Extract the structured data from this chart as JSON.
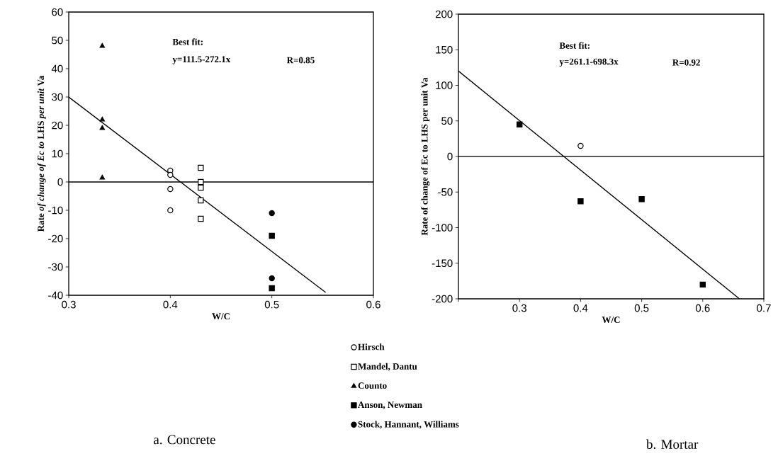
{
  "chart_data": [
    {
      "type": "scatter",
      "title": "a.  Concrete",
      "xlabel": "W/C",
      "ylabel": "Rate *of change of Ec to* LHS *per unit* Va",
      "annotations": [
        "Best fit:",
        "y=111.5-272.1x",
        "R=0.85"
      ],
      "xlim": [
        0.3,
        0.6
      ],
      "xticks": [
        0.3,
        0.4,
        0.5,
        0.6
      ],
      "ylim": [
        -40,
        60
      ],
      "yticks": [
        -40,
        -30,
        -20,
        -10,
        0,
        10,
        20,
        30,
        40,
        50,
        60
      ],
      "legend": "bottom",
      "ref_lines": [
        {
          "axis": "y",
          "value": 0
        }
      ],
      "series": [
        {
          "name": "Hirsch",
          "marker": "circle",
          "color": "#ffffff",
          "x": [
            0.4,
            0.4,
            0.4,
            0.4
          ],
          "values": [
            4,
            2.5,
            -2.5,
            -10
          ]
        },
        {
          "name": "Mandel, Dantu",
          "marker": "square",
          "color": "#ffffff",
          "x": [
            0.43,
            0.43,
            0.43,
            0.43,
            0.43
          ],
          "values": [
            5,
            0,
            -2,
            -6.5,
            -13
          ]
        },
        {
          "name": "Counto",
          "marker": "triangle",
          "color": "#000000",
          "x": [
            0.333,
            0.333,
            0.333,
            0.333
          ],
          "values": [
            48,
            22,
            19,
            1.5
          ]
        },
        {
          "name": "Anson, Newman",
          "marker": "square",
          "color": "#000000",
          "x": [
            0.5,
            0.5
          ],
          "values": [
            -19,
            -37.5
          ]
        },
        {
          "name": "Stock, Hannant, Williams",
          "marker": "circle",
          "color": "#000000",
          "x": [
            0.5,
            0.5
          ],
          "values": [
            -11,
            -34
          ]
        },
        {
          "type": "line",
          "marker": "none",
          "color": "#000000",
          "x": [
            0.3,
            0.553
          ],
          "values": [
            30,
            -39
          ]
        }
      ]
    },
    {
      "type": "scatter",
      "title": "b.  Mortar",
      "xlabel": "W/C",
      "ylabel": "Rate of change of Ec to LHS per unit Va",
      "annotations": [
        "Best fit:",
        "y=261.1-698.3x",
        "R=0.92"
      ],
      "xlim": [
        0.2,
        0.7
      ],
      "xticks": [
        {
          "value": 0.2,
          "label": null
        },
        0.3,
        0.4,
        0.5,
        0.6,
        0.7
      ],
      "ylim": [
        -200,
        200
      ],
      "yticks": [
        -200,
        -150,
        -100,
        -50,
        0,
        50,
        100,
        150,
        200
      ],
      "ref_lines": [
        {
          "axis": "y",
          "value": 0
        }
      ],
      "series": [
        {
          "marker": "circle",
          "color": "#ffffff",
          "x": [
            0.4
          ],
          "values": [
            15
          ]
        },
        {
          "marker": "square",
          "color": "#000000",
          "x": [
            0.3,
            0.4,
            0.5,
            0.6
          ],
          "values": [
            45,
            -63,
            -60,
            -180
          ]
        },
        {
          "type": "line",
          "marker": "none",
          "color": "#000000",
          "x": [
            0.2,
            0.66
          ],
          "values": [
            120,
            -200
          ]
        }
      ]
    }
  ]
}
